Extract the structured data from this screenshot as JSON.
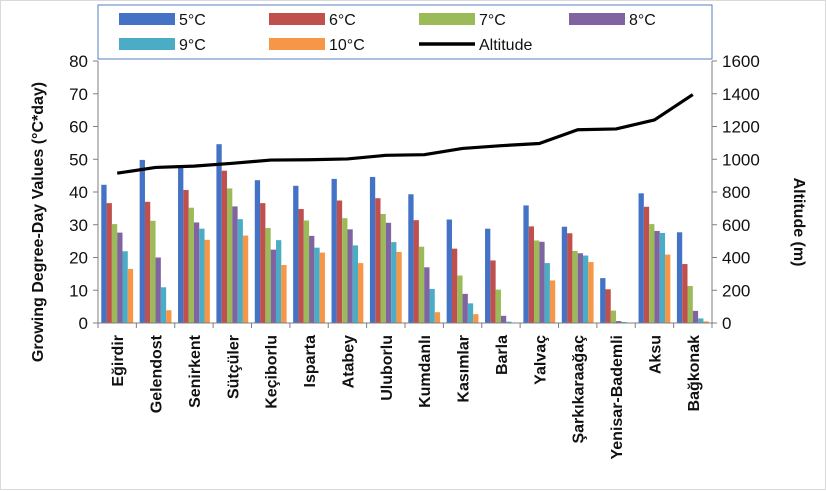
{
  "chart_data": {
    "type": "bar",
    "categories": [
      "Eğirdir",
      "Gelendost",
      "Senirkent",
      "Sütçüler",
      "Keçiborlu",
      "Isparta",
      "Atabey",
      "Uluborlu",
      "Kumdanlı",
      "Kasımlar",
      "Barla",
      "Yalvaç",
      "Şarkıkaraağaç",
      "Yenisar-Bademli",
      "Aksu",
      "Bağkonak"
    ],
    "series": [
      {
        "name": "5°C",
        "color": "#4472c4",
        "values": [
          42.2,
          49.8,
          47.8,
          54.6,
          43.6,
          41.9,
          44.0,
          44.6,
          39.3,
          31.6,
          28.8,
          35.9,
          29.4,
          13.7,
          39.6,
          27.7
        ]
      },
      {
        "name": "6°C",
        "color": "#c0504d",
        "values": [
          36.6,
          37.0,
          40.6,
          46.5,
          36.6,
          34.8,
          37.4,
          38.1,
          31.4,
          22.7,
          19.1,
          29.5,
          27.4,
          10.3,
          35.5,
          18.0
        ]
      },
      {
        "name": "7°C",
        "color": "#9bbb59",
        "values": [
          30.2,
          31.2,
          35.2,
          41.1,
          29.0,
          31.3,
          32.0,
          33.3,
          23.3,
          14.5,
          10.2,
          25.2,
          22.0,
          3.8,
          30.2,
          11.3
        ]
      },
      {
        "name": "8°C",
        "color": "#8064a2",
        "values": [
          27.6,
          20.0,
          30.7,
          35.6,
          22.4,
          26.6,
          28.6,
          30.6,
          17.0,
          8.9,
          2.2,
          24.8,
          21.3,
          0.6,
          28.1,
          3.7
        ]
      },
      {
        "name": "9°C",
        "color": "#4bacc6",
        "values": [
          21.9,
          10.9,
          28.8,
          31.7,
          25.3,
          23.0,
          23.7,
          24.7,
          10.4,
          6.0,
          0.4,
          18.3,
          20.6,
          0.3,
          27.5,
          1.4
        ]
      },
      {
        "name": "10°C",
        "color": "#f79646",
        "values": [
          16.5,
          3.9,
          25.4,
          26.7,
          17.7,
          21.5,
          18.3,
          21.7,
          3.3,
          2.7,
          0.0,
          13.0,
          18.6,
          0.0,
          20.9,
          0.5
        ]
      }
    ],
    "line_series": {
      "name": "Altitude",
      "color": "#000000",
      "values": [
        915,
        950,
        958,
        975,
        995,
        997,
        1002,
        1024,
        1028,
        1066,
        1083,
        1096,
        1180,
        1185,
        1240,
        1395
      ]
    },
    "y_left": {
      "label": "Growing Degree-Day Values (°C*day)",
      "ticks": [
        0,
        10,
        20,
        30,
        40,
        50,
        60,
        70,
        80
      ],
      "min": 0,
      "max": 80
    },
    "y_right": {
      "label": "Altitude (m)",
      "ticks": [
        0,
        200,
        400,
        600,
        800,
        1000,
        1200,
        1400,
        1600
      ],
      "min": 0,
      "max": 1600
    },
    "gridlines": false,
    "legend_position": "top"
  }
}
